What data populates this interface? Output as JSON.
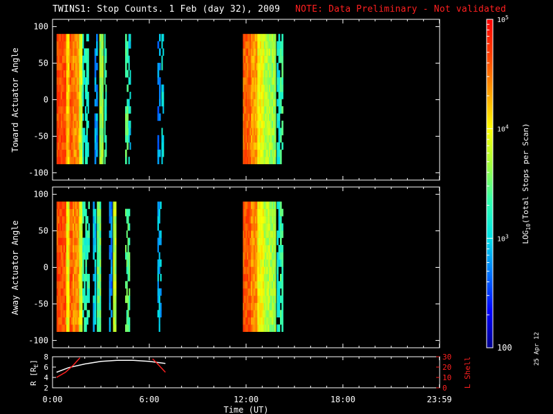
{
  "title": {
    "main": "TWINS1: Stop Counts.  1 Feb (day  32), 2009",
    "note": "NOTE: Data Preliminary - Not validated",
    "note_color": "#ff2020"
  },
  "date_stamp": "25 Apr 12",
  "chart_data": [
    {
      "type": "heatmap",
      "name": "toward",
      "ylabel": "Toward Actuator Angle",
      "ylim": [
        -110,
        110
      ],
      "yticks": [
        100,
        50,
        0,
        -50,
        -100
      ],
      "xlim": [
        0,
        24
      ],
      "angle_range": [
        -88,
        90
      ],
      "intervals": [
        {
          "t0": 0.25,
          "t1": 0.85,
          "level": 0.88
        },
        {
          "t0": 0.85,
          "t1": 1.05,
          "level": 0.72
        },
        {
          "t0": 1.05,
          "t1": 1.25,
          "level": 0.86
        },
        {
          "t0": 1.25,
          "t1": 1.65,
          "level": 0.8
        },
        {
          "t0": 1.65,
          "t1": 1.85,
          "level": 0.6
        },
        {
          "t0": 1.85,
          "t1": 2.25,
          "level": 0.4
        },
        {
          "t0": 2.6,
          "t1": 2.8,
          "level": 0.28
        },
        {
          "t0": 2.9,
          "t1": 3.15,
          "level": 0.55
        },
        {
          "t0": 3.2,
          "t1": 3.35,
          "level": 0.42
        },
        {
          "t0": 4.5,
          "t1": 4.7,
          "level": 0.48
        },
        {
          "t0": 4.7,
          "t1": 4.85,
          "level": 0.35
        },
        {
          "t0": 6.5,
          "t1": 6.7,
          "level": 0.25
        },
        {
          "t0": 6.75,
          "t1": 6.9,
          "level": 0.35
        },
        {
          "t0": 11.8,
          "t1": 12.3,
          "level": 0.85
        },
        {
          "t0": 12.3,
          "t1": 12.7,
          "level": 0.78
        },
        {
          "t0": 12.7,
          "t1": 13.1,
          "level": 0.66
        },
        {
          "t0": 13.1,
          "t1": 13.5,
          "level": 0.58
        },
        {
          "t0": 13.5,
          "t1": 13.85,
          "level": 0.55
        },
        {
          "t0": 13.9,
          "t1": 14.1,
          "level": 0.38
        },
        {
          "t0": 14.1,
          "t1": 14.3,
          "level": 0.45
        }
      ]
    },
    {
      "type": "heatmap",
      "name": "away",
      "ylabel": "Away Actuator Angle",
      "ylim": [
        -110,
        110
      ],
      "yticks": [
        100,
        50,
        0,
        -50,
        -100
      ],
      "xlim": [
        0,
        24
      ],
      "angle_range": [
        -88,
        90
      ],
      "intervals": [
        {
          "t0": 0.25,
          "t1": 0.85,
          "level": 0.88
        },
        {
          "t0": 0.85,
          "t1": 1.05,
          "level": 0.65
        },
        {
          "t0": 1.05,
          "t1": 1.25,
          "level": 0.86
        },
        {
          "t0": 1.25,
          "t1": 1.65,
          "level": 0.8
        },
        {
          "t0": 1.65,
          "t1": 1.85,
          "level": 0.62
        },
        {
          "t0": 1.85,
          "t1": 2.3,
          "level": 0.42
        },
        {
          "t0": 2.5,
          "t1": 2.7,
          "level": 0.32
        },
        {
          "t0": 2.75,
          "t1": 3.0,
          "level": 0.5
        },
        {
          "t0": 3.5,
          "t1": 3.7,
          "level": 0.25
        },
        {
          "t0": 3.75,
          "t1": 3.95,
          "level": 0.58
        },
        {
          "t0": 4.5,
          "t1": 4.8,
          "level": 0.48
        },
        {
          "t0": 6.5,
          "t1": 6.75,
          "level": 0.3
        },
        {
          "t0": 11.8,
          "t1": 12.3,
          "level": 0.86
        },
        {
          "t0": 12.3,
          "t1": 12.7,
          "level": 0.8
        },
        {
          "t0": 12.7,
          "t1": 13.1,
          "level": 0.66
        },
        {
          "t0": 13.1,
          "t1": 13.5,
          "level": 0.58
        },
        {
          "t0": 13.5,
          "t1": 13.85,
          "level": 0.55
        },
        {
          "t0": 13.9,
          "t1": 14.1,
          "level": 0.38
        },
        {
          "t0": 14.1,
          "t1": 14.3,
          "level": 0.45
        }
      ]
    },
    {
      "type": "line",
      "name": "ephemeris",
      "ylabel": "R [R",
      "ylabel_sub": "E",
      "ylim": [
        2,
        8
      ],
      "yticks": [
        2,
        4,
        6,
        8
      ],
      "y2label": "L Shell",
      "y2lim": [
        0,
        30
      ],
      "y2ticks": [
        0,
        10,
        20,
        30
      ],
      "y2color": "#ff2020",
      "xlim": [
        0,
        24
      ],
      "xticks": [
        0,
        6,
        12,
        18,
        23.983
      ],
      "xticklabels": [
        "0:00",
        "6:00",
        "12:00",
        "18:00",
        "23:59"
      ],
      "xlabel": "Time (UT)",
      "series": [
        {
          "color": "#ffffff",
          "axis": "left",
          "x": [
            0.25,
            1,
            2,
            3,
            4,
            5,
            6,
            7
          ],
          "y": [
            5.0,
            5.9,
            6.6,
            7.1,
            7.3,
            7.3,
            7.1,
            6.7
          ]
        },
        {
          "color": "#ff2020",
          "axis": "right",
          "x": [
            0.25,
            0.8,
            1.3,
            1.7
          ],
          "y": [
            10,
            15,
            22,
            29
          ]
        },
        {
          "color": "#ff2020",
          "axis": "right",
          "x": [
            6.2,
            6.4,
            6.7,
            7.0
          ],
          "y": [
            28,
            25,
            20,
            15
          ]
        }
      ]
    }
  ],
  "colorbar": {
    "label_prefix": "LOG",
    "label_sub": "10",
    "label_suffix": "(Total Stops per Scan)",
    "min": 100,
    "max": 100000,
    "tick_min_label": "100",
    "tick_labels": [
      {
        "value": 1000,
        "base": "10",
        "exp": "3"
      },
      {
        "value": 10000,
        "base": "10",
        "exp": "4"
      },
      {
        "value": 100000,
        "base": "10",
        "exp": "5"
      }
    ],
    "stops": [
      "#00008c",
      "#0000ff",
      "#0070ff",
      "#00e0e8",
      "#30ffb0",
      "#a0ff40",
      "#ffff00",
      "#ffa000",
      "#ff4000",
      "#ff0000"
    ]
  }
}
